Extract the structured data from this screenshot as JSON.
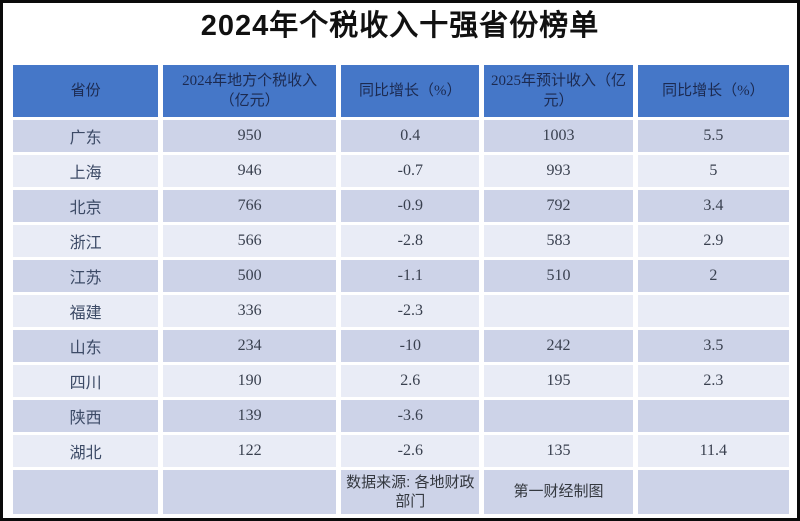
{
  "page": {
    "title": "2024年个税收入十强省份榜单"
  },
  "chart_data": {
    "type": "table",
    "title": "2024年个税收入十强省份榜单",
    "columns": [
      "省份",
      "2024年地方个税收入（亿元）",
      "同比增长（%）",
      "2025年预计收入（亿元）",
      "同比增长（%）"
    ],
    "rows": [
      [
        "广东",
        950,
        0.4,
        1003,
        5.5
      ],
      [
        "上海",
        946,
        -0.7,
        993,
        5
      ],
      [
        "北京",
        766,
        -0.9,
        792,
        3.4
      ],
      [
        "浙江",
        566,
        -2.8,
        583,
        2.9
      ],
      [
        "江苏",
        500,
        -1.1,
        510,
        2
      ],
      [
        "福建",
        336,
        -2.3,
        "",
        ""
      ],
      [
        "山东",
        234,
        -10,
        242,
        3.5
      ],
      [
        "四川",
        190,
        2.6,
        195,
        2.3
      ],
      [
        "陕西",
        139,
        -3.6,
        "",
        ""
      ],
      [
        "湖北",
        122,
        -2.6,
        135,
        11.4
      ]
    ],
    "footer": {
      "source": "数据来源: 各地财政部门",
      "credit": "第一财经制图"
    }
  },
  "colors": {
    "frame_border": "#0b0b0b",
    "header_bg": "#4577c8",
    "header_text": "#1c2a50",
    "row_dark": "#cdd3e8",
    "row_light": "#e9ecf6",
    "cell_text": "#39404f",
    "province_text": "#3c4a66",
    "title_text": "#111111",
    "footer_text": "#34383f"
  }
}
